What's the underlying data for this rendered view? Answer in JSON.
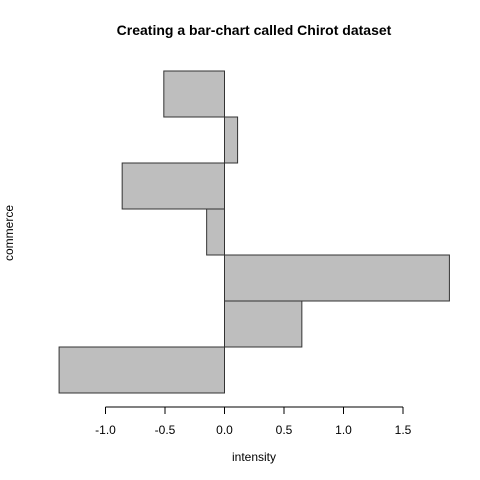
{
  "chart_data": {
    "type": "bar",
    "orientation": "horizontal",
    "title": "Creating a bar-chart called Chirot dataset",
    "xlabel": "intensity",
    "ylabel": "commerce",
    "xlim": [
      -1.4,
      1.9
    ],
    "x_ticks": [
      -1.0,
      -0.5,
      0.0,
      0.5,
      1.0,
      1.5
    ],
    "x_tick_labels": [
      "-1.0",
      "-0.5",
      "0.0",
      "0.5",
      "1.0",
      "1.5"
    ],
    "values": [
      -1.39,
      0.65,
      1.89,
      -0.15,
      -0.86,
      0.11,
      -0.51
    ],
    "bar_fill": "#bebebe",
    "bar_stroke": "#333333",
    "grid": false,
    "legend": "none"
  }
}
